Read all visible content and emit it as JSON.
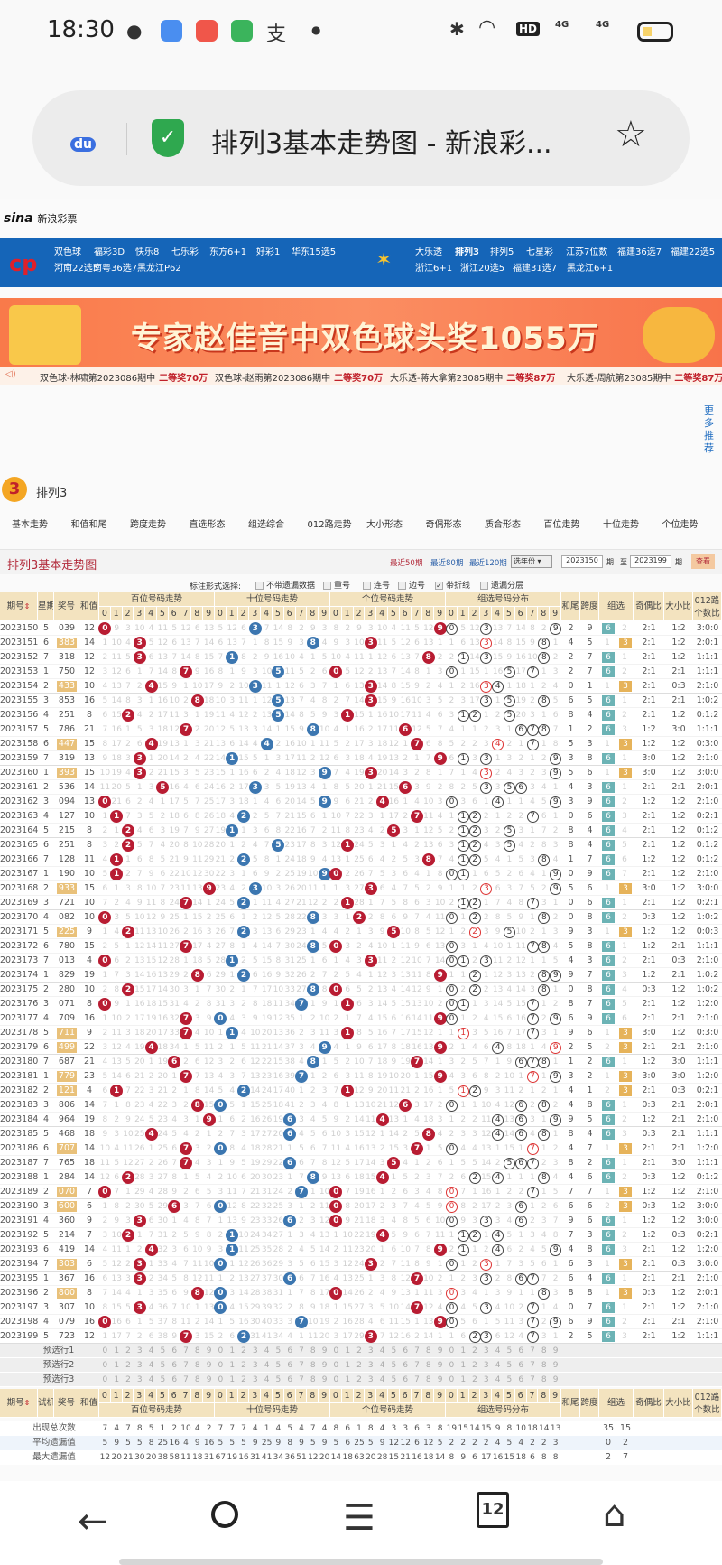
{
  "status_bar": {
    "time": "18:30",
    "icons": [
      "wechat-icon",
      "browser-icon",
      "kuaishou-icon",
      "app-store-icon",
      "alipay-icon",
      "dot-icon",
      "bluetooth-icon",
      "wifi-icon",
      "hd-icon",
      "signal-4g-1-icon",
      "signal-4g-2-icon",
      "battery-icon"
    ],
    "hd_label": "HD",
    "net1": "4G",
    "net2": "4G"
  },
  "address_bar": {
    "title": "排列3基本走势图 - 新浪彩...",
    "icons": [
      "baidu-icon",
      "secure-shield-icon",
      "star-icon"
    ],
    "baidu_label": "du"
  },
  "site": {
    "logo": "sina",
    "logo_sub": "新浪彩票"
  },
  "nav": {
    "left": [
      "双色球",
      "福彩3D",
      "快乐8",
      "七乐彩",
      "东方6+1",
      "好彩1",
      "华东15选5",
      "河南22选5",
      "南粤36选7",
      "黑龙江P62"
    ],
    "right": [
      "大乐透",
      "排列3",
      "排列5",
      "七星彩",
      "江苏7位数",
      "福建36选7",
      "福建22选5",
      "浙江6+1",
      "浙江20选5",
      "福建31选7",
      "黑龙江6+1"
    ],
    "active": "排列3"
  },
  "banner": {
    "text": "专家赵佳音中双色球头奖1055万"
  },
  "ticker": [
    {
      "text": "双色球-林啸第2023086期中",
      "prize": "二等奖70万"
    },
    {
      "text": "双色球-赵雨第2023086期中",
      "prize": "二等奖70万"
    },
    {
      "text": "大乐透-蒋大拿第23085期中",
      "prize": "二等奖87万"
    },
    {
      "text": "大乐透-周航第23085期中",
      "prize": "二等奖87万"
    }
  ],
  "more": "更多推荐",
  "lottery": {
    "name": "排列3",
    "badge": "3"
  },
  "tabs": [
    "基本走势",
    "和值和尾",
    "跨度走势",
    "直选形态",
    "组选综合",
    "012路走势",
    "大小形态",
    "奇偶形态",
    "质合形态",
    "百位走势",
    "十位走势",
    "个位走势"
  ],
  "chart_header": {
    "title": "排列3基本走势图",
    "links": [
      "最近50期",
      "最近80期",
      "最近120期"
    ],
    "year_select": "选年份",
    "from": "2023150",
    "period_unit": "期",
    "to_label": "至",
    "to": "2023199",
    "query": "查看"
  },
  "options": {
    "label": "标注形式选择:",
    "items": [
      {
        "label": "不带遗漏数据",
        "checked": false
      },
      {
        "label": "重号",
        "checked": false
      },
      {
        "label": "连号",
        "checked": false
      },
      {
        "label": "边号",
        "checked": false
      },
      {
        "label": "带折线",
        "checked": true
      },
      {
        "label": "遗漏分层",
        "checked": false
      }
    ]
  },
  "headers": {
    "period": "期号",
    "week": "星期",
    "number": "奖号",
    "sum": "和值",
    "sections": [
      "百位号码走势",
      "十位号码走势",
      "个位号码走势",
      "组选号码分布"
    ],
    "tail": "和尾",
    "span": "跨度",
    "group": "组选",
    "odd_even": "奇偶比",
    "big_small": "大小比",
    "route": "012路个数比",
    "trial": "试机",
    "sort_icon": "sort-icon"
  },
  "colors": {
    "hundreds": "#b81c32",
    "tens": "#3b76b0",
    "units": "#b81c32",
    "group6": "#6cb3b5",
    "group3": "#e6b35a",
    "highlight": "#e9c17a"
  },
  "rows": [
    [
      "2023150",
      "5",
      "039"
    ],
    [
      "2023151",
      "6",
      "383"
    ],
    [
      "2023152",
      "7",
      "318"
    ],
    [
      "2023153",
      "1",
      "750"
    ],
    [
      "2023154",
      "2",
      "433"
    ],
    [
      "2023155",
      "3",
      "853"
    ],
    [
      "2023156",
      "4",
      "251"
    ],
    [
      "2023157",
      "5",
      "786"
    ],
    [
      "2023158",
      "6",
      "447"
    ],
    [
      "2023159",
      "7",
      "319"
    ],
    [
      "2023160",
      "1",
      "393"
    ],
    [
      "2023161",
      "2",
      "536"
    ],
    [
      "2023162",
      "3",
      "094"
    ],
    [
      "2023163",
      "4",
      "127"
    ],
    [
      "2023164",
      "5",
      "215"
    ],
    [
      "2023165",
      "6",
      "251"
    ],
    [
      "2023166",
      "7",
      "128"
    ],
    [
      "2023167",
      "1",
      "190"
    ],
    [
      "2023168",
      "2",
      "933"
    ],
    [
      "2023169",
      "3",
      "721"
    ],
    [
      "2023170",
      "4",
      "082"
    ],
    [
      "2023171",
      "5",
      "225"
    ],
    [
      "2023172",
      "6",
      "780"
    ],
    [
      "2023173",
      "7",
      "013"
    ],
    [
      "2023174",
      "1",
      "829"
    ],
    [
      "2023175",
      "2",
      "280"
    ],
    [
      "2023176",
      "3",
      "071"
    ],
    [
      "2023177",
      "4",
      "709"
    ],
    [
      "2023178",
      "5",
      "711"
    ],
    [
      "2023179",
      "6",
      "499"
    ],
    [
      "2023180",
      "7",
      "687"
    ],
    [
      "2023181",
      "1",
      "779"
    ],
    [
      "2023182",
      "2",
      "121"
    ],
    [
      "2023183",
      "3",
      "806"
    ],
    [
      "2023184",
      "4",
      "964"
    ],
    [
      "2023185",
      "5",
      "468"
    ],
    [
      "2023186",
      "6",
      "707"
    ],
    [
      "2023187",
      "7",
      "765"
    ],
    [
      "2023188",
      "1",
      "284"
    ],
    [
      "2023189",
      "2",
      "070"
    ],
    [
      "2023190",
      "3",
      "600"
    ],
    [
      "2023191",
      "4",
      "360"
    ],
    [
      "2023192",
      "5",
      "214"
    ],
    [
      "2023193",
      "6",
      "419"
    ],
    [
      "2023194",
      "7",
      "303"
    ],
    [
      "2023195",
      "1",
      "367"
    ],
    [
      "2023196",
      "2",
      "800"
    ],
    [
      "2023197",
      "3",
      "307"
    ],
    [
      "2023198",
      "4",
      "079"
    ],
    [
      "2023199",
      "5",
      "723"
    ]
  ],
  "preselect": [
    "预选行1",
    "预选行2",
    "预选行3"
  ],
  "stats": [
    {
      "label": "出现总次数",
      "values": [
        7,
        4,
        7,
        8,
        5,
        1,
        2,
        10,
        4,
        2,
        7,
        7,
        7,
        4,
        1,
        4,
        5,
        4,
        7,
        4,
        8,
        6,
        1,
        8,
        4,
        3,
        3,
        6,
        3,
        8,
        19,
        15,
        14,
        15,
        9,
        8,
        10,
        18,
        14,
        13
      ],
      "group": [
        35,
        15
      ]
    },
    {
      "label": "平均遗漏值",
      "values": [
        5,
        9,
        5,
        5,
        8,
        25,
        16,
        4,
        9,
        16,
        5,
        5,
        5,
        9,
        25,
        9,
        8,
        9,
        5,
        9,
        5,
        6,
        25,
        5,
        9,
        12,
        12,
        6,
        12,
        5,
        2,
        2,
        2,
        2,
        4,
        5,
        4,
        2,
        2,
        3
      ],
      "group": [
        0,
        2
      ]
    },
    {
      "label": "最大遗漏值",
      "values": [
        12,
        20,
        21,
        30,
        20,
        38,
        58,
        11,
        18,
        31,
        67,
        19,
        16,
        31,
        41,
        34,
        36,
        51,
        12,
        20,
        14,
        18,
        63,
        20,
        28,
        15,
        21,
        16,
        18,
        14,
        8,
        9,
        6,
        17,
        16,
        15,
        18,
        6,
        8,
        8
      ],
      "group": [
        2,
        7
      ]
    }
  ],
  "bottom_nav": {
    "tab_count": "12",
    "items": [
      "back-icon",
      "search-icon",
      "menu-icon",
      "tabs-icon",
      "home-icon"
    ]
  }
}
